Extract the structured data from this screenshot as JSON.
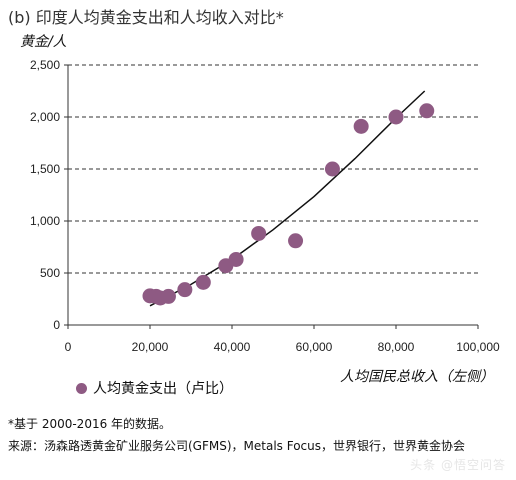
{
  "chart_data": {
    "type": "scatter",
    "title": "(b) 印度人均黄金支出和人均收入对比*",
    "ylabel": "黄金/人",
    "xlabel": "人均国民总收入（左侧）",
    "xlim": [
      0,
      100000
    ],
    "ylim": [
      0,
      2500
    ],
    "x_ticks": [
      "0",
      "20,000",
      "40,000",
      "60,000",
      "80,000",
      "100,000"
    ],
    "y_ticks": [
      "0",
      "500",
      "1,000",
      "1,500",
      "2,000",
      "2,500"
    ],
    "grid": "horizontal dashed",
    "legend_position": "bottom-left",
    "series": [
      {
        "name": "人均黄金支出（卢比）",
        "color": "#8e5a83",
        "points": [
          {
            "x": 20000,
            "y": 280
          },
          {
            "x": 21500,
            "y": 275
          },
          {
            "x": 22500,
            "y": 260
          },
          {
            "x": 24500,
            "y": 275
          },
          {
            "x": 28500,
            "y": 340
          },
          {
            "x": 33000,
            "y": 410
          },
          {
            "x": 38500,
            "y": 570
          },
          {
            "x": 41000,
            "y": 630
          },
          {
            "x": 46500,
            "y": 880
          },
          {
            "x": 55500,
            "y": 810
          },
          {
            "x": 64500,
            "y": 1500
          },
          {
            "x": 71500,
            "y": 1910
          },
          {
            "x": 80000,
            "y": 2000
          },
          {
            "x": 87500,
            "y": 2060
          }
        ]
      }
    ],
    "trendline": {
      "color": "#111111",
      "points": [
        {
          "x": 20000,
          "y": 185
        },
        {
          "x": 30000,
          "y": 390
        },
        {
          "x": 40000,
          "y": 630
        },
        {
          "x": 50000,
          "y": 915
        },
        {
          "x": 60000,
          "y": 1235
        },
        {
          "x": 70000,
          "y": 1600
        },
        {
          "x": 80000,
          "y": 1990
        },
        {
          "x": 87000,
          "y": 2250
        }
      ]
    }
  },
  "footnote": "*基于 2000-2016 年的数据。",
  "source": "来源：汤森路透黄金矿业服务公司(GFMS)，Metals Focus，世界银行，世界黄金协会",
  "watermark": "头条 @悟空问答"
}
